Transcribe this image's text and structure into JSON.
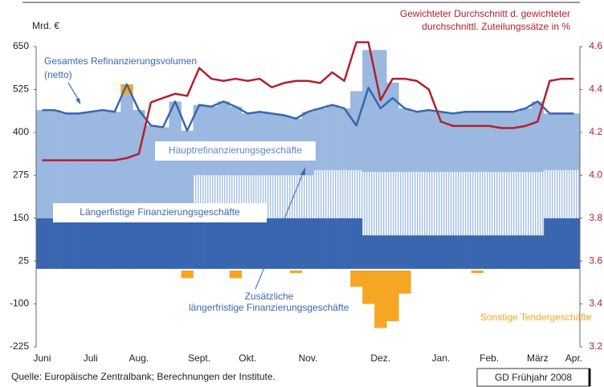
{
  "chart_data": {
    "type": "bar",
    "y_label": "Mrd. €",
    "y2_label_lines": [
      "Gewichteter Durchschnitt d. gewichteter",
      "durchschnittl. Zuteilungssätze in %"
    ],
    "annotations": {
      "total": [
        "Gesamtes Refinanzierungsvolumen",
        "(netto)"
      ],
      "additional": [
        "Zusätzliche",
        "längerfristige  Finanzierungsgeschäfte"
      ]
    },
    "source": "Quelle: Europäische Zentralbank; Berechnungen der Institute.",
    "credit": "GD Frühjahr 2008",
    "categories": [
      "Juni",
      null,
      null,
      null,
      "Juli",
      null,
      null,
      null,
      "Aug.",
      null,
      null,
      null,
      null,
      "Sept.",
      null,
      null,
      null,
      "Okt.",
      null,
      null,
      null,
      null,
      "Nov.",
      null,
      null,
      null,
      null,
      null,
      "Dez.",
      null,
      null,
      null,
      null,
      "Jan.",
      null,
      null,
      null,
      "Feb.",
      null,
      null,
      null,
      "März",
      null,
      null,
      "Apr."
    ],
    "ylim": [
      -225,
      650
    ],
    "yticks": [
      650,
      525,
      400,
      275,
      150,
      25,
      -100,
      -225
    ],
    "y2lim": [
      3.2,
      4.6
    ],
    "y2ticks": [
      4.6,
      4.4,
      4.2,
      {
        "value": 4,
        "label": "4.0"
      },
      3.8,
      3.6,
      3.4,
      3.2
    ],
    "series": [
      {
        "name": "Längerfistige Finanzierungsgeschäfte",
        "type": "bar",
        "color": "#3a66b0",
        "values": [
          150,
          150,
          150,
          150,
          150,
          150,
          150,
          150,
          150,
          150,
          150,
          150,
          150,
          150,
          150,
          150,
          150,
          150,
          150,
          150,
          150,
          150,
          150,
          150,
          150,
          150,
          150,
          100,
          100,
          100,
          100,
          100,
          100,
          100,
          100,
          100,
          100,
          100,
          100,
          100,
          100,
          100,
          150,
          150,
          150
        ]
      },
      {
        "type": "bar",
        "color": "#a9c2e6",
        "pattern": true,
        "values": [
          0,
          0,
          0,
          0,
          0,
          0,
          0,
          0,
          0,
          40,
          40,
          40,
          40,
          125,
          125,
          125,
          125,
          125,
          125,
          125,
          125,
          125,
          125,
          140,
          140,
          140,
          140,
          185,
          185,
          185,
          185,
          185,
          185,
          185,
          185,
          185,
          185,
          185,
          185,
          185,
          185,
          185,
          140,
          140,
          140
        ]
      },
      {
        "name": "Hauptrefinanzierungsgeschäfte",
        "type": "bar",
        "color": "#9ab8e0",
        "values": [
          315,
          315,
          305,
          305,
          310,
          315,
          310,
          360,
          315,
          230,
          225,
          300,
          215,
          205,
          200,
          215,
          200,
          180,
          185,
          180,
          175,
          165,
          185,
          180,
          190,
          180,
          230,
          355,
          355,
          260,
          185,
          175,
          180,
          175,
          170,
          175,
          175,
          175,
          175,
          175,
          185,
          205,
          165,
          165,
          165
        ]
      },
      {
        "type": "line",
        "color": "#3a66b0",
        "values": [
          465,
          465,
          455,
          455,
          460,
          465,
          460,
          540,
          465,
          420,
          415,
          490,
          405,
          480,
          475,
          490,
          475,
          455,
          460,
          455,
          450,
          440,
          460,
          470,
          480,
          470,
          420,
          530,
          470,
          500,
          470,
          460,
          465,
          460,
          455,
          460,
          460,
          460,
          460,
          460,
          470,
          490,
          455,
          455,
          455
        ]
      },
      {
        "name": "Sonstige Tendergeschäfte",
        "type": "bar",
        "color": "#f5a623",
        "values": [
          0,
          0,
          0,
          0,
          0,
          0,
          0,
          30,
          0,
          0,
          0,
          0,
          -25,
          0,
          0,
          0,
          -25,
          0,
          0,
          0,
          0,
          -10,
          0,
          0,
          0,
          0,
          -50,
          -100,
          -170,
          -150,
          -70,
          0,
          0,
          0,
          0,
          0,
          -10,
          0,
          0,
          0,
          0,
          0,
          0,
          0,
          0
        ]
      },
      {
        "type": "line",
        "axis": "y2",
        "color": "#b0212e",
        "values": [
          4.07,
          4.07,
          4.07,
          4.07,
          4.07,
          4.07,
          4.07,
          4.08,
          4.1,
          4.34,
          4.36,
          4.38,
          4.37,
          4.5,
          4.45,
          4.44,
          4.45,
          4.44,
          4.45,
          4.41,
          4.43,
          4.44,
          4.44,
          4.43,
          4.48,
          4.44,
          4.62,
          4.62,
          4.35,
          4.45,
          4.45,
          4.44,
          4.4,
          4.25,
          4.23,
          4.23,
          4.23,
          4.23,
          4.22,
          4.22,
          4.23,
          4.25,
          4.44,
          4.45,
          4.45
        ]
      }
    ]
  }
}
